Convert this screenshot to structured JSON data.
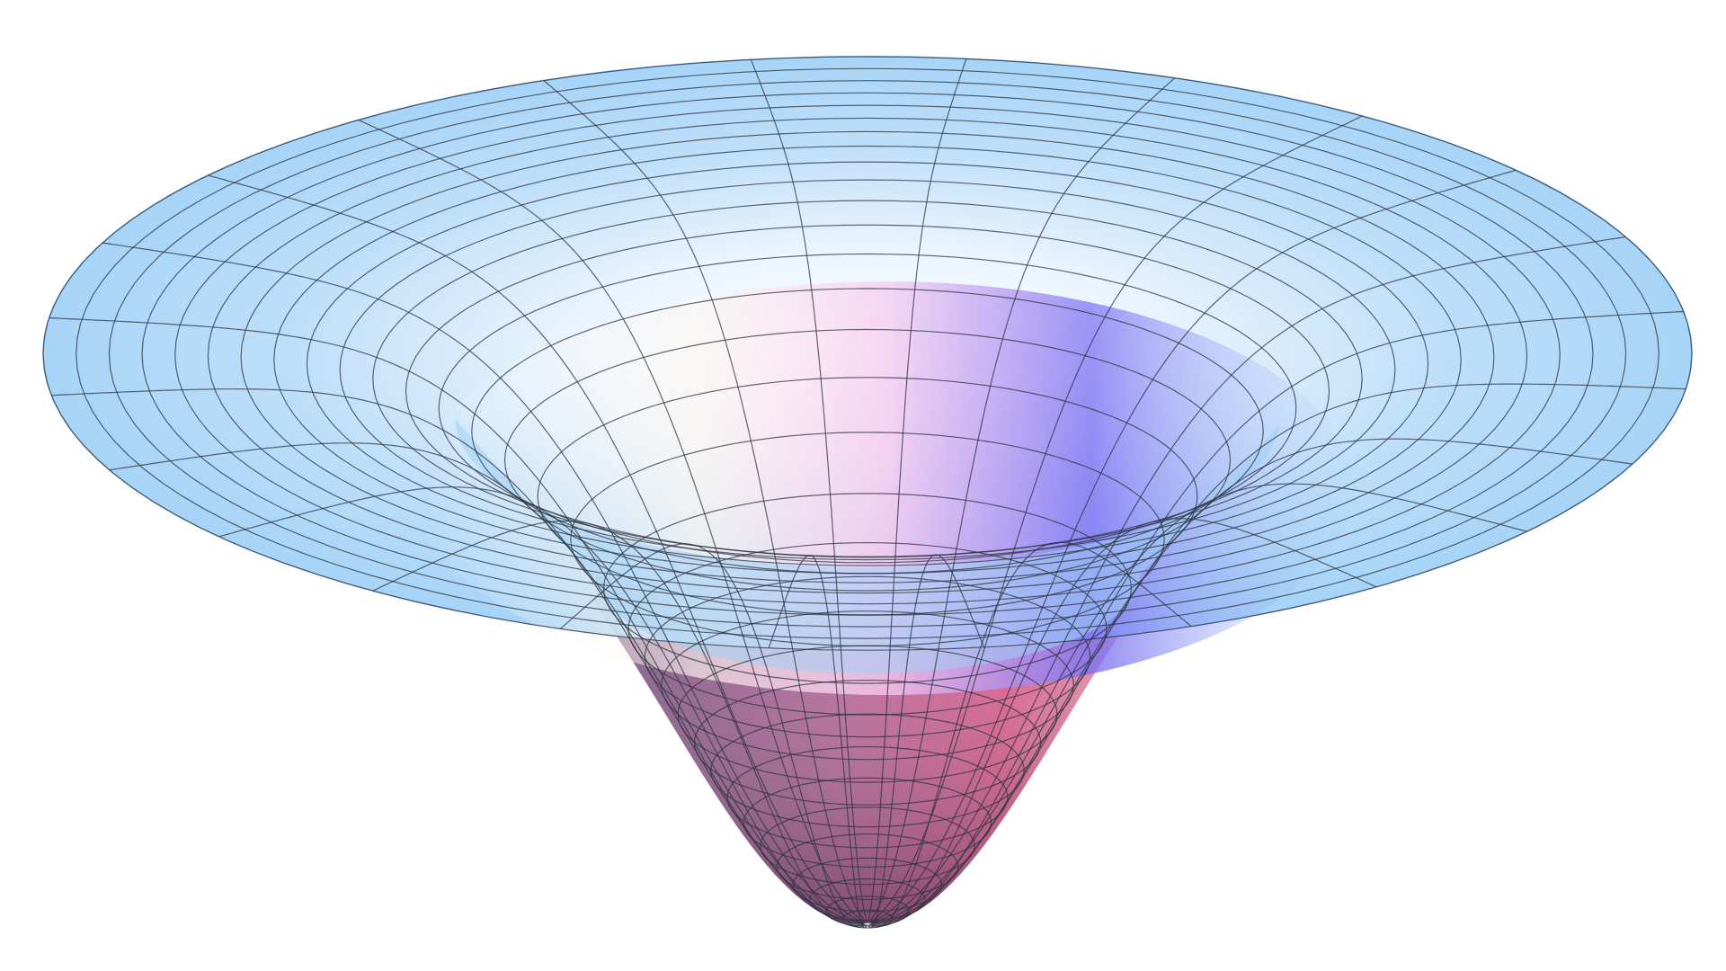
{
  "figure": {
    "kind": "3d-surface-funnel",
    "colors": {
      "background": "#ffffff",
      "rim": "#9fd0f6",
      "rim_edge": "#7fbbed",
      "throat_light": "#fdfbff",
      "throat_pink": "#f7c9ec",
      "throat_violet": "#7a6cf0",
      "bowl_top": "#c46fa8",
      "bowl_mid": "#d95f8a",
      "bowl_dark": "#6f4a78",
      "grid": "#2e3440"
    }
  }
}
